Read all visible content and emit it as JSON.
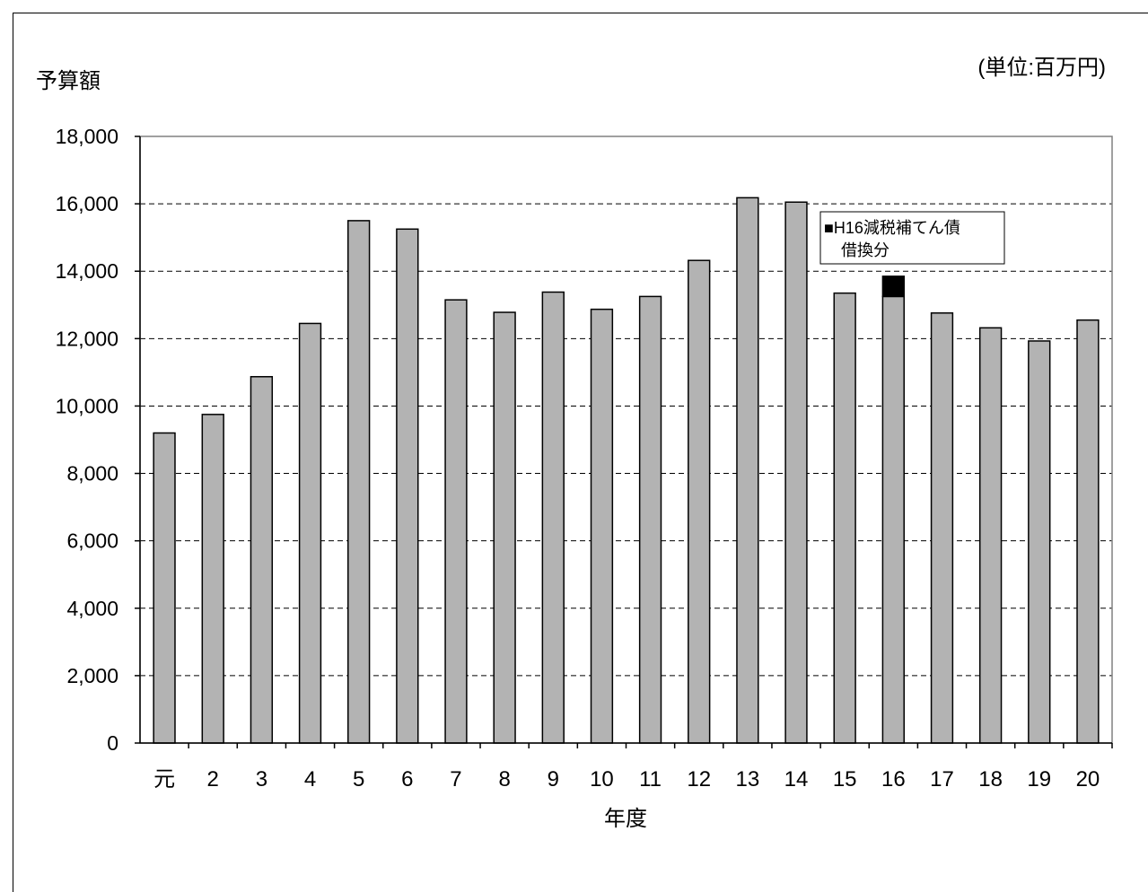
{
  "chart_data": {
    "type": "bar",
    "ylabel": "予算額",
    "unit_label": "(単位:百万円)",
    "xlabel": "年度",
    "ylim": [
      0,
      18000
    ],
    "yticks": [
      0,
      2000,
      4000,
      6000,
      8000,
      10000,
      12000,
      14000,
      16000,
      18000
    ],
    "ytick_labels": [
      "0",
      "2,000",
      "4,000",
      "6,000",
      "8,000",
      "10,000",
      "12,000",
      "14,000",
      "16,000",
      "18,000"
    ],
    "grid": "horizontal-dashed",
    "categories": [
      "元",
      "2",
      "3",
      "4",
      "5",
      "6",
      "7",
      "8",
      "9",
      "10",
      "11",
      "12",
      "13",
      "14",
      "15",
      "16",
      "17",
      "18",
      "19",
      "20"
    ],
    "series": [
      {
        "values": [
          9200,
          9750,
          10870,
          12450,
          15500,
          15250,
          13150,
          12780,
          13380,
          12870,
          13250,
          14320,
          16180,
          16050,
          13350,
          13250,
          12760,
          12320,
          11930,
          12550
        ],
        "color": "#b3b3b3"
      },
      {
        "name": "H16減税補てん債借換分",
        "values": [
          0,
          0,
          0,
          0,
          0,
          0,
          0,
          0,
          0,
          0,
          0,
          0,
          0,
          0,
          0,
          600,
          0,
          0,
          0,
          0
        ],
        "color": "#000000"
      }
    ],
    "legend": {
      "placement": "top-right",
      "line1": "■H16減税補てん債",
      "line2": "借換分"
    }
  }
}
